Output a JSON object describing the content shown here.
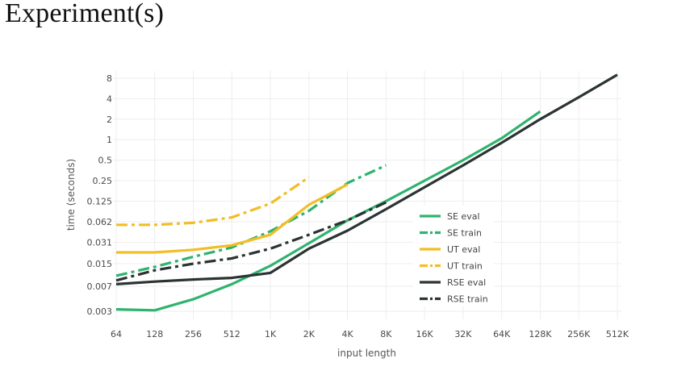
{
  "slide": {
    "title": "Experiment(s)"
  },
  "chart_data": {
    "type": "line",
    "xlabel": "input length",
    "ylabel": "time (seconds)",
    "x_scale": "log2",
    "y_scale": "log2",
    "categories": [
      "64",
      "128",
      "256",
      "512",
      "1K",
      "2K",
      "4K",
      "8K",
      "16K",
      "32K",
      "64K",
      "128K",
      "256K",
      "512K"
    ],
    "x": [
      64,
      128,
      256,
      512,
      1024,
      2048,
      4096,
      8192,
      16384,
      32768,
      65536,
      131072,
      262144,
      524288
    ],
    "y_ticks": [
      0.003,
      0.007,
      0.015,
      0.031,
      0.062,
      0.125,
      0.25,
      0.5,
      1,
      2,
      4,
      8
    ],
    "y_tick_labels": [
      "0.003",
      "0.007",
      "0.015",
      "0.031",
      "0.062",
      "0.125",
      "0.25",
      "0.5",
      "1",
      "2",
      "4",
      "8"
    ],
    "grid": true,
    "legend_position": "right",
    "series": [
      {
        "name": "SE eval",
        "color": "#2fb36e",
        "style": "solid",
        "x": [
          64,
          128,
          256,
          512,
          1024,
          2048,
          4096,
          8192,
          16384,
          32768,
          65536,
          131072
        ],
        "y": [
          0.0032,
          0.0031,
          0.0045,
          0.0075,
          0.014,
          0.03,
          0.065,
          0.125,
          0.25,
          0.5,
          1.05,
          2.6
        ]
      },
      {
        "name": "SE train",
        "color": "#2fb36e",
        "style": "dashdot",
        "x": [
          64,
          128,
          256,
          512,
          1024,
          2048,
          4096,
          8192
        ],
        "y": [
          0.01,
          0.0135,
          0.019,
          0.026,
          0.045,
          0.09,
          0.23,
          0.42
        ]
      },
      {
        "name": "UT eval",
        "color": "#f2bd25",
        "style": "solid",
        "x": [
          64,
          128,
          256,
          512,
          1024,
          2048,
          4096
        ],
        "y": [
          0.022,
          0.022,
          0.024,
          0.028,
          0.04,
          0.11,
          0.22
        ]
      },
      {
        "name": "UT train",
        "color": "#f2bd25",
        "style": "dashdot",
        "x": [
          64,
          128,
          256,
          512,
          1024,
          2048
        ],
        "y": [
          0.056,
          0.056,
          0.06,
          0.072,
          0.115,
          0.28
        ]
      },
      {
        "name": "RSE eval",
        "color": "#2c3333",
        "style": "solid",
        "x": [
          64,
          128,
          256,
          512,
          1024,
          2048,
          4096,
          8192,
          16384,
          32768,
          65536,
          131072,
          262144,
          524288
        ],
        "y": [
          0.0075,
          0.0082,
          0.0088,
          0.0093,
          0.011,
          0.025,
          0.046,
          0.095,
          0.2,
          0.42,
          0.9,
          2.0,
          4.2,
          9.0
        ]
      },
      {
        "name": "RSE train",
        "color": "#2c3333",
        "style": "dashdot",
        "x": [
          64,
          128,
          256,
          512,
          1024,
          2048,
          4096,
          8192
        ],
        "y": [
          0.0085,
          0.012,
          0.015,
          0.018,
          0.025,
          0.04,
          0.065,
          0.12
        ]
      }
    ]
  }
}
